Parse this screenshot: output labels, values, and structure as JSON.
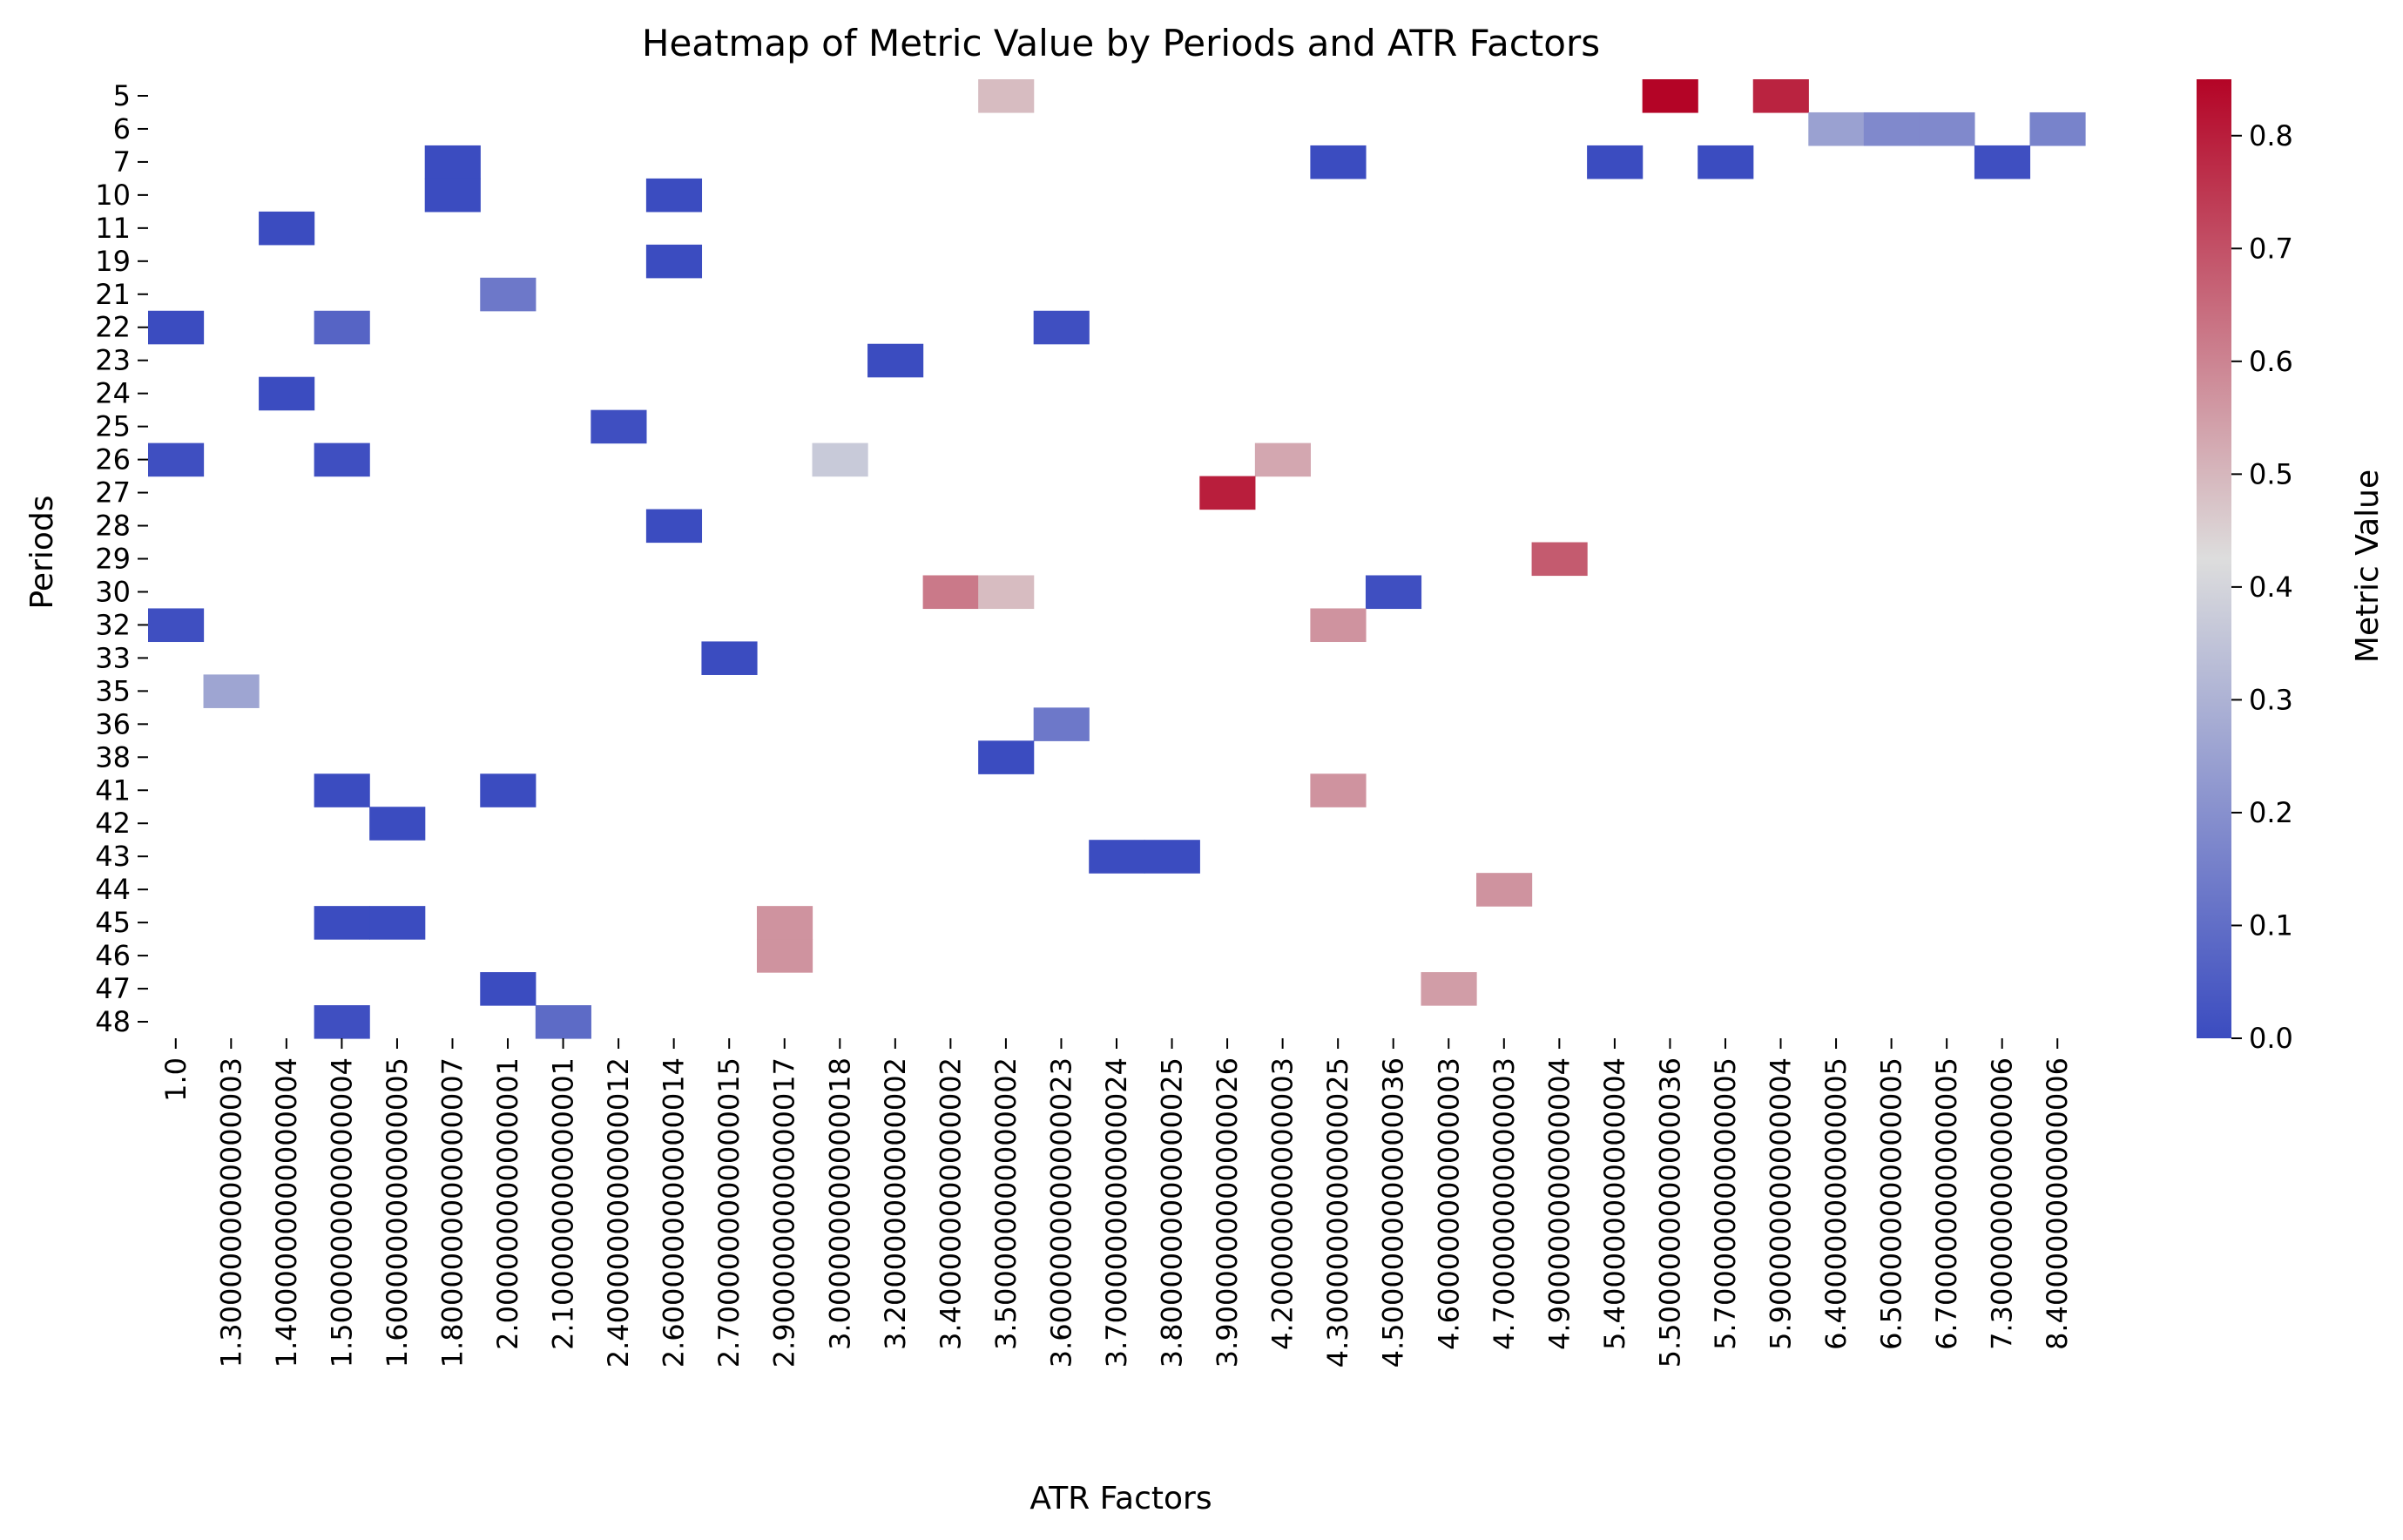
{
  "chart_data": {
    "type": "heatmap",
    "title": "Heatmap of Metric Value by Periods and ATR Factors",
    "xlabel": "ATR Factors",
    "ylabel": "Periods",
    "colorbar_label": "Metric Value",
    "colormap": "coolwarm",
    "colormap_stops": [
      "#3b4cc0",
      "#dddddd",
      "#b40426"
    ],
    "vmin": 0.0,
    "vmax": 0.85,
    "colorbar_ticks": [
      "0.0",
      "0.1",
      "0.2",
      "0.3",
      "0.4",
      "0.5",
      "0.6",
      "0.7",
      "0.8"
    ],
    "x_categories": [
      "1.0",
      "1.3000000000000003",
      "1.4000000000000004",
      "1.5000000000000004",
      "1.6000000000000005",
      "1.8000000000000007",
      "2.000000000000001",
      "2.100000000000001",
      "2.4000000000000012",
      "2.6000000000000014",
      "2.7000000000000015",
      "2.9000000000000017",
      "3.000000000000018",
      "3.200000000000002",
      "3.400000000000002",
      "3.500000000000002",
      "3.6000000000000023",
      "3.7000000000000024",
      "3.8000000000000025",
      "3.9000000000000026",
      "4.200000000000003",
      "4.3000000000000025",
      "4.5000000000000036",
      "4.600000000000003",
      "4.700000000000003",
      "4.900000000000004",
      "5.400000000000004",
      "5.5000000000000036",
      "5.700000000000005",
      "5.900000000000004",
      "6.400000000000005",
      "6.500000000000005",
      "6.700000000000005",
      "7.300000000000006",
      "8.400000000000006"
    ],
    "y_categories": [
      "5",
      "6",
      "7",
      "10",
      "11",
      "19",
      "21",
      "22",
      "23",
      "24",
      "25",
      "26",
      "27",
      "28",
      "29",
      "30",
      "32",
      "33",
      "35",
      "36",
      "38",
      "41",
      "42",
      "43",
      "44",
      "45",
      "46",
      "47",
      "48"
    ],
    "cells": [
      {
        "period": "5",
        "atr": "3.500000000000002",
        "value": 0.49
      },
      {
        "period": "5",
        "atr": "5.5000000000000036",
        "value": 0.85
      },
      {
        "period": "5",
        "atr": "5.900000000000004",
        "value": 0.79
      },
      {
        "period": "6",
        "atr": "6.400000000000005",
        "value": 0.25
      },
      {
        "period": "6",
        "atr": "6.500000000000005",
        "value": 0.18
      },
      {
        "period": "6",
        "atr": "6.700000000000005",
        "value": 0.18
      },
      {
        "period": "6",
        "atr": "8.400000000000006",
        "value": 0.16
      },
      {
        "period": "7",
        "atr": "1.8000000000000007",
        "value": 0.0
      },
      {
        "period": "7",
        "atr": "4.3000000000000025",
        "value": 0.0
      },
      {
        "period": "7",
        "atr": "5.400000000000004",
        "value": 0.0
      },
      {
        "period": "7",
        "atr": "5.700000000000005",
        "value": 0.0
      },
      {
        "period": "7",
        "atr": "7.300000000000006",
        "value": 0.01
      },
      {
        "period": "10",
        "atr": "1.8000000000000007",
        "value": 0.0
      },
      {
        "period": "10",
        "atr": "2.6000000000000014",
        "value": 0.0
      },
      {
        "period": "11",
        "atr": "1.4000000000000004",
        "value": 0.0
      },
      {
        "period": "19",
        "atr": "2.6000000000000014",
        "value": 0.0
      },
      {
        "period": "21",
        "atr": "2.000000000000001",
        "value": 0.13
      },
      {
        "period": "22",
        "atr": "1.0",
        "value": 0.0
      },
      {
        "period": "22",
        "atr": "1.5000000000000004",
        "value": 0.07
      },
      {
        "period": "22",
        "atr": "3.6000000000000023",
        "value": 0.01
      },
      {
        "period": "23",
        "atr": "3.200000000000002",
        "value": 0.0
      },
      {
        "period": "24",
        "atr": "1.4000000000000004",
        "value": 0.0
      },
      {
        "period": "25",
        "atr": "2.4000000000000012",
        "value": 0.01
      },
      {
        "period": "26",
        "atr": "1.0",
        "value": 0.01
      },
      {
        "period": "26",
        "atr": "1.5000000000000004",
        "value": 0.01
      },
      {
        "period": "26",
        "atr": "3.000000000000018",
        "value": 0.37
      },
      {
        "period": "26",
        "atr": "4.200000000000003",
        "value": 0.53
      },
      {
        "period": "27",
        "atr": "3.9000000000000026",
        "value": 0.8
      },
      {
        "period": "28",
        "atr": "2.6000000000000014",
        "value": 0.0
      },
      {
        "period": "29",
        "atr": "4.900000000000004",
        "value": 0.68
      },
      {
        "period": "30",
        "atr": "3.400000000000002",
        "value": 0.62
      },
      {
        "period": "30",
        "atr": "3.500000000000002",
        "value": 0.49
      },
      {
        "period": "30",
        "atr": "4.5000000000000036",
        "value": 0.01
      },
      {
        "period": "32",
        "atr": "1.0",
        "value": 0.01
      },
      {
        "period": "32",
        "atr": "4.3000000000000025",
        "value": 0.57
      },
      {
        "period": "33",
        "atr": "2.7000000000000015",
        "value": 0.0
      },
      {
        "period": "35",
        "atr": "1.3000000000000003",
        "value": 0.26
      },
      {
        "period": "36",
        "atr": "3.6000000000000023",
        "value": 0.13
      },
      {
        "period": "38",
        "atr": "3.500000000000002",
        "value": 0.0
      },
      {
        "period": "41",
        "atr": "1.5000000000000004",
        "value": 0.0
      },
      {
        "period": "41",
        "atr": "2.000000000000001",
        "value": 0.0
      },
      {
        "period": "41",
        "atr": "4.3000000000000025",
        "value": 0.57
      },
      {
        "period": "42",
        "atr": "1.6000000000000005",
        "value": 0.0
      },
      {
        "period": "43",
        "atr": "3.7000000000000024",
        "value": 0.0
      },
      {
        "period": "43",
        "atr": "3.8000000000000025",
        "value": 0.0
      },
      {
        "period": "44",
        "atr": "4.700000000000003",
        "value": 0.57
      },
      {
        "period": "45",
        "atr": "1.5000000000000004",
        "value": 0.0
      },
      {
        "period": "45",
        "atr": "1.6000000000000005",
        "value": 0.0
      },
      {
        "period": "45",
        "atr": "2.9000000000000017",
        "value": 0.57
      },
      {
        "period": "46",
        "atr": "2.9000000000000017",
        "value": 0.57
      },
      {
        "period": "47",
        "atr": "2.000000000000001",
        "value": 0.0
      },
      {
        "period": "47",
        "atr": "4.600000000000003",
        "value": 0.55
      },
      {
        "period": "48",
        "atr": "1.5000000000000004",
        "value": 0.01
      },
      {
        "period": "48",
        "atr": "2.100000000000001",
        "value": 0.09
      }
    ]
  }
}
